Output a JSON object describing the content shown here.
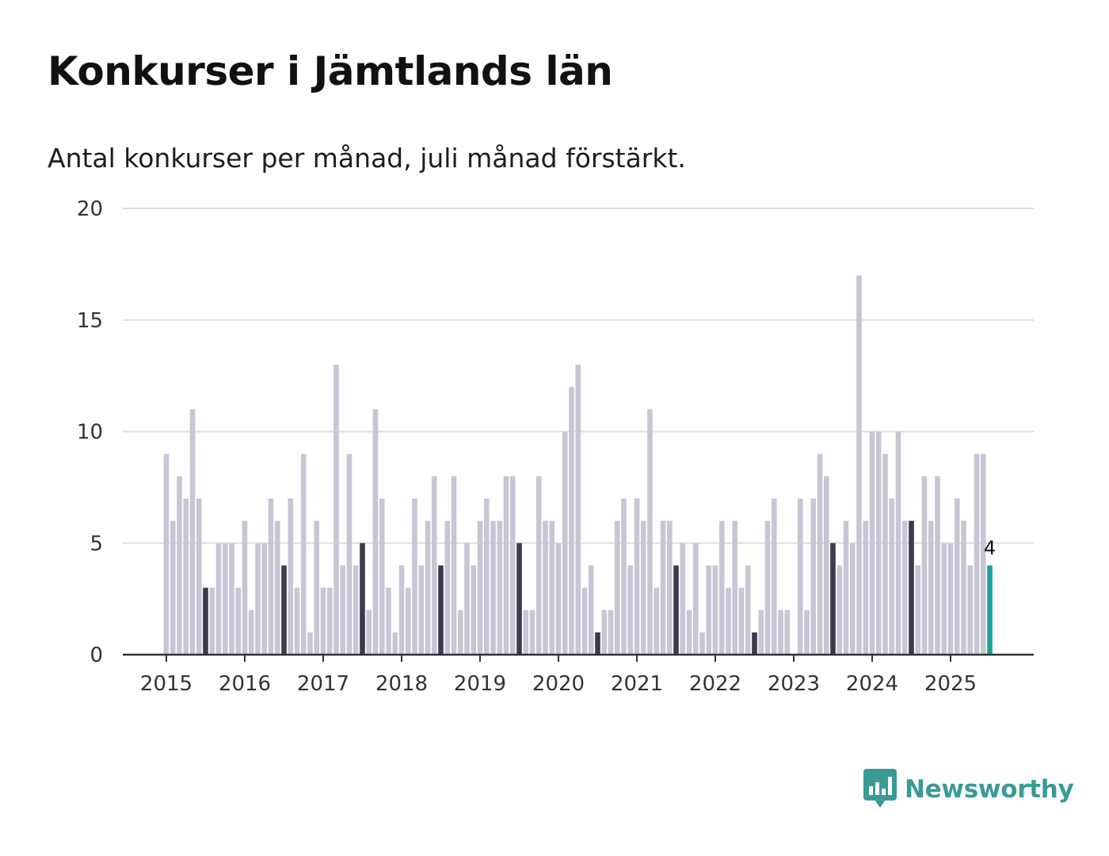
{
  "title": "Konkurser i Jämtlands län",
  "subtitle": "Antal konkurser per månad, juli månad förstärkt.",
  "brand": "Newsworthy",
  "colors": {
    "bar": "#c7c6d4",
    "highlight": "#3c3b4d",
    "latest": "#1aa39a",
    "grid": "#dedde3",
    "axis": "#333333",
    "brand": "#3a9a96"
  },
  "chart_data": {
    "type": "bar",
    "x_start": "2015-01",
    "interval": "month",
    "highlight_month": "juli",
    "highlight_month_index": 7,
    "values": [
      9,
      6,
      8,
      7,
      11,
      7,
      3,
      3,
      5,
      5,
      5,
      3,
      6,
      2,
      5,
      5,
      7,
      6,
      4,
      7,
      3,
      9,
      1,
      6,
      3,
      3,
      13,
      4,
      9,
      4,
      5,
      2,
      11,
      7,
      3,
      1,
      4,
      3,
      7,
      4,
      6,
      8,
      4,
      6,
      8,
      2,
      5,
      4,
      6,
      7,
      6,
      6,
      8,
      8,
      5,
      2,
      2,
      8,
      6,
      6,
      5,
      10,
      12,
      13,
      3,
      4,
      1,
      2,
      2,
      6,
      7,
      4,
      7,
      6,
      11,
      3,
      6,
      6,
      4,
      5,
      2,
      5,
      1,
      4,
      4,
      6,
      3,
      6,
      3,
      4,
      1,
      2,
      6,
      7,
      2,
      2,
      0,
      7,
      2,
      7,
      9,
      8,
      5,
      4,
      6,
      5,
      17,
      6,
      10,
      10,
      9,
      7,
      10,
      6,
      6,
      4,
      8,
      6,
      8,
      5,
      5,
      7,
      6,
      4,
      9,
      9,
      4
    ],
    "x_tick_labels": [
      "2015",
      "2016",
      "2017",
      "2018",
      "2019",
      "2020",
      "2021",
      "2022",
      "2023",
      "2024",
      "2025"
    ],
    "y_ticks": [
      0,
      5,
      10,
      15,
      20
    ],
    "ylim": [
      0,
      20
    ],
    "last_value_label": "4",
    "xlabel": "",
    "ylabel": "",
    "grid": true,
    "legend": "none"
  }
}
